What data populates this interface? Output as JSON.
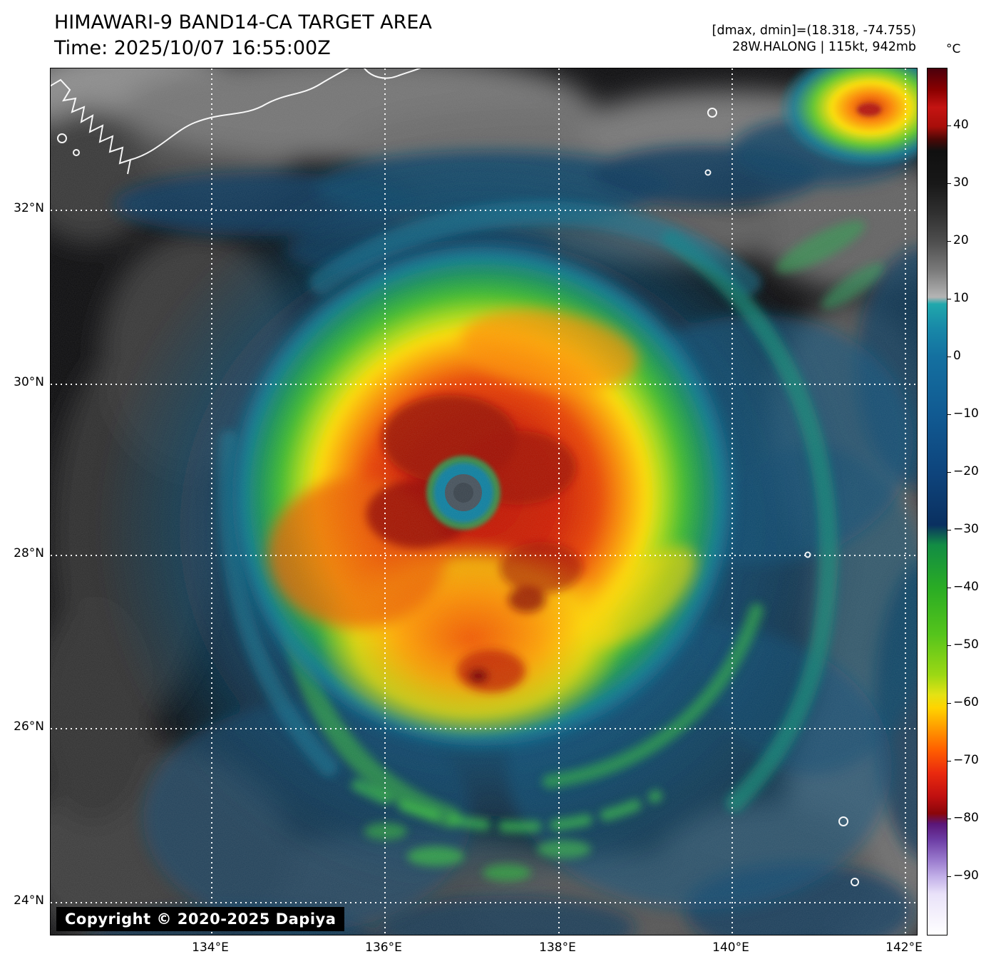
{
  "header": {
    "title": "HIMAWARI-9 BAND14-CA TARGET AREA",
    "time_label": "Time: 2025/10/07 16:55:00Z",
    "range_label": "[dmax, dmin]=(18.318, -74.755)",
    "storm_label": "28W.HALONG | 115kt, 942mb",
    "unit_label": "°C"
  },
  "map": {
    "copyright": "Copyright © 2020-2025 Dapiya",
    "lat_labels": [
      {
        "text": "32°N",
        "f": 0.163
      },
      {
        "text": "30°N",
        "f": 0.3638
      },
      {
        "text": "28°N",
        "f": 0.5613
      },
      {
        "text": "26°N",
        "f": 0.7613
      },
      {
        "text": "24°N",
        "f": 0.9621
      }
    ],
    "lon_labels": [
      {
        "text": "134°E",
        "f": 0.1852
      },
      {
        "text": "136°E",
        "f": 0.3852
      },
      {
        "text": "138°E",
        "f": 0.586
      },
      {
        "text": "140°E",
        "f": 0.786
      },
      {
        "text": "142°E",
        "f": 0.986
      }
    ]
  },
  "colorbar": {
    "max": 50,
    "min": -100,
    "ticks": [
      {
        "label": "40",
        "value": 40
      },
      {
        "label": "30",
        "value": 30
      },
      {
        "label": "20",
        "value": 20
      },
      {
        "label": "10",
        "value": 10
      },
      {
        "label": "0",
        "value": 0
      },
      {
        "label": "−10",
        "value": -10
      },
      {
        "label": "−20",
        "value": -20
      },
      {
        "label": "−30",
        "value": -30
      },
      {
        "label": "−40",
        "value": -40
      },
      {
        "label": "−50",
        "value": -50
      },
      {
        "label": "−60",
        "value": -60
      },
      {
        "label": "−70",
        "value": -70
      },
      {
        "label": "−80",
        "value": -80
      },
      {
        "label": "−90",
        "value": -90
      }
    ]
  },
  "colors": {
    "grid": "#ffffff",
    "coastline": "#ffffff",
    "background": "#0c0c0e"
  }
}
